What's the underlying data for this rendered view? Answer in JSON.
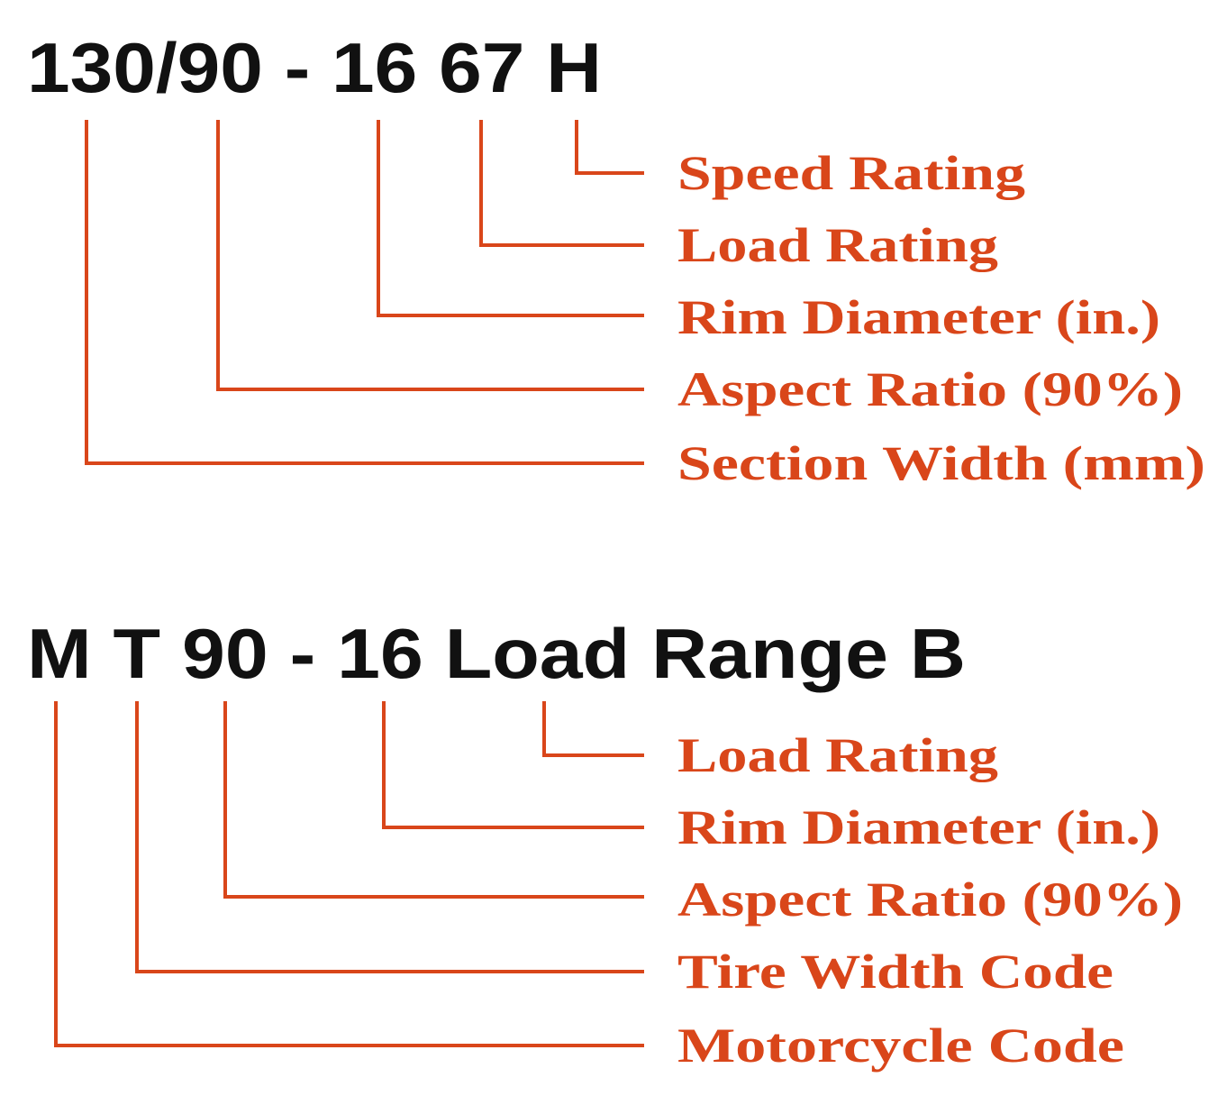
{
  "accent_color": "#d9461a",
  "diagrams": [
    {
      "code": "130/90 - 16 67 H",
      "labels": [
        "Speed Rating",
        "Load Rating",
        "Rim Diameter (in.)",
        "Aspect Ratio (90%)",
        "Section Width (mm)"
      ]
    },
    {
      "code": "M T 90 - 16 Load Range B",
      "labels": [
        "Load Rating",
        "Rim Diameter (in.)",
        "Aspect Ratio (90%)",
        "Tire Width Code",
        "Motorcycle Code"
      ]
    }
  ]
}
